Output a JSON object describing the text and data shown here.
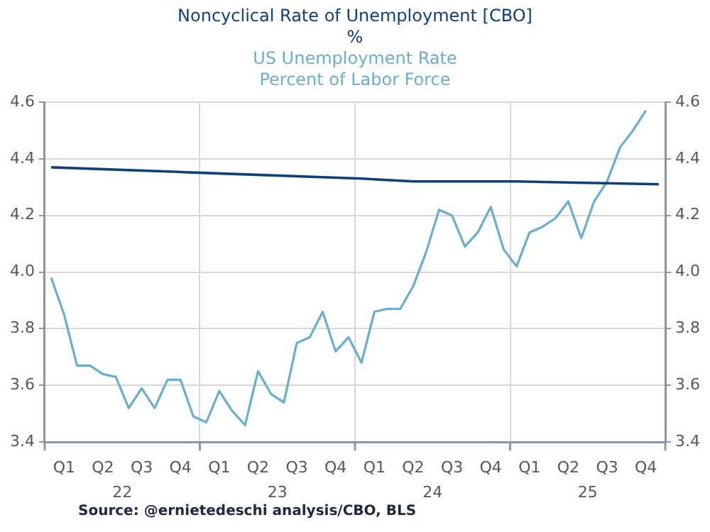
{
  "chart_data": {
    "type": "line",
    "legend": "top",
    "categories": [
      null,
      "Q1",
      null,
      null,
      "Q2",
      null,
      null,
      "Q3",
      null,
      null,
      "Q4",
      null,
      null,
      "Q1",
      null,
      null,
      "Q2",
      null,
      null,
      "Q3",
      null,
      null,
      "Q4",
      null,
      null,
      "Q1",
      null,
      null,
      "Q2",
      null,
      null,
      "Q3",
      null,
      null,
      "Q4",
      null,
      null,
      "Q1",
      null,
      null,
      "Q2",
      null,
      null,
      "Q3",
      null,
      null,
      "Q4",
      null
    ],
    "x2lim": [
      "2022-01-01",
      "2026-01-01"
    ],
    "x2ticks": [
      {
        "value": "2022-01-01",
        "label": null
      },
      {
        "value": "2022-07-01",
        "label": "22"
      },
      {
        "value": "2023-01-01",
        "label": null
      },
      {
        "value": "2023-07-01",
        "label": "23"
      },
      {
        "value": "2024-01-01",
        "label": null
      },
      {
        "value": "2024-07-01",
        "label": "24"
      },
      {
        "value": "2025-01-01",
        "label": null
      },
      {
        "value": "2025-07-01",
        "label": "25"
      },
      {
        "value": "2026-01-01",
        "label": null
      }
    ],
    "ylim": [
      3.4,
      4.6
    ],
    "yticks": [
      {
        "value": 3.4,
        "label": "3.4"
      },
      {
        "value": 3.6,
        "label": "3.6"
      },
      {
        "value": 3.8,
        "label": "3.8"
      },
      {
        "value": 4.0,
        "label": "4.0"
      },
      {
        "value": 4.2,
        "label": "4.2"
      },
      {
        "value": 4.4,
        "label": "4.4"
      },
      {
        "value": 4.6,
        "label": "4.6"
      }
    ],
    "y2lim": [
      3.4,
      4.6
    ],
    "y2ticks": [
      {
        "value": 3.4,
        "label": "3.4"
      },
      {
        "value": 3.6,
        "label": "3.6"
      },
      {
        "value": 3.8,
        "label": "3.8"
      },
      {
        "value": 4.0,
        "label": "4.0"
      },
      {
        "value": 4.2,
        "label": "4.2"
      },
      {
        "value": 4.4,
        "label": "4.4"
      },
      {
        "value": 4.6,
        "label": "4.6"
      }
    ],
    "grid": true,
    "series": [
      {
        "name": "Noncyclical Rate of Unemployment [CBO]",
        "color": "#0d3f7a",
        "axis": "y",
        "values": [
          4.37,
          null,
          null,
          null,
          null,
          null,
          null,
          null,
          null,
          null,
          null,
          null,
          4.35,
          null,
          null,
          null,
          null,
          null,
          null,
          null,
          null,
          null,
          null,
          null,
          4.33,
          null,
          null,
          null,
          4.32,
          null,
          null,
          null,
          null,
          null,
          null,
          null,
          4.32,
          null,
          null,
          null,
          null,
          null,
          null,
          null,
          null,
          null,
          null,
          4.31
        ]
      },
      {
        "name": "US Unemployment Rate",
        "color": "#6aaecf",
        "axis": "y2",
        "values": [
          3.98,
          3.85,
          3.67,
          3.67,
          3.64,
          3.63,
          3.52,
          3.59,
          3.52,
          3.62,
          3.62,
          3.49,
          3.47,
          3.58,
          3.51,
          3.46,
          3.65,
          3.57,
          3.54,
          3.75,
          3.77,
          3.86,
          3.72,
          3.77,
          3.68,
          3.86,
          3.87,
          3.87,
          3.95,
          4.07,
          4.22,
          4.2,
          4.09,
          4.14,
          4.23,
          4.08,
          4.02,
          4.14,
          4.16,
          4.19,
          4.25,
          4.12,
          4.25,
          4.32,
          4.44,
          4.5,
          4.57,
          null
        ]
      }
    ],
    "annotations": [
      "%",
      "Percent of Labor Force",
      "Source:  @ernietedeschi analysis/CBO, BLS"
    ]
  }
}
